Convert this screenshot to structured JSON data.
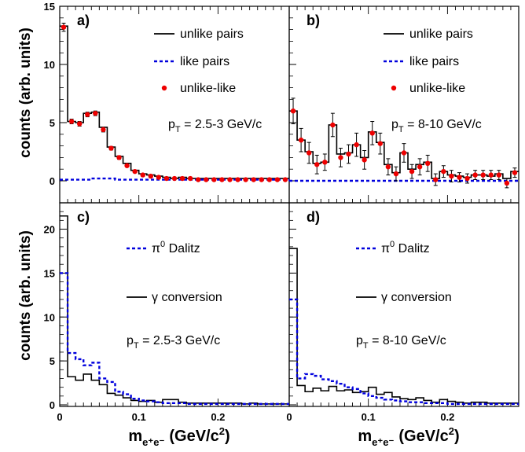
{
  "ylabel": "counts (arb. units)",
  "xlabel_main": "m",
  "xlabel_sub": "e⁺e⁻",
  "xlabel_units": "(GeV/c",
  "xlabel_pow": "2",
  "xlabel_close": ")",
  "colors": {
    "unlike": "#000000",
    "like": "#0000dd",
    "diff": "#ee0000",
    "dalitz": "#0000dd",
    "conv": "#000000"
  },
  "chart_data": [
    {
      "panel": "a",
      "type": "line",
      "label": "a)",
      "pt_pre": "p",
      "pt_sub": "T",
      "pt_val": " = 2.5-3 GeV/c",
      "ylim": [
        0,
        15
      ],
      "yticks": [
        0,
        5,
        10,
        15
      ],
      "xlim": [
        0,
        0.29
      ],
      "legend": {
        "unlike": "unlike pairs",
        "like": "like pairs",
        "diff": "unlike-like"
      },
      "x_edges": [
        0,
        0.01,
        0.02,
        0.03,
        0.04,
        0.05,
        0.06,
        0.07,
        0.08,
        0.09,
        0.1,
        0.11,
        0.12,
        0.13,
        0.14,
        0.15,
        0.16,
        0.17,
        0.18,
        0.19,
        0.2,
        0.21,
        0.22,
        0.23,
        0.24,
        0.25,
        0.26,
        0.27,
        0.28,
        0.29
      ],
      "series": [
        {
          "key": "unlike",
          "values": [
            13.3,
            5.1,
            5.0,
            5.8,
            5.9,
            4.6,
            2.9,
            2.1,
            1.5,
            0.9,
            0.6,
            0.5,
            0.4,
            0.3,
            0.2,
            0.3,
            0.2,
            0.2,
            0.2,
            0.2,
            0.2,
            0.2,
            0.2,
            0.2,
            0.2,
            0.2,
            0.2,
            0.2,
            0.2
          ]
        },
        {
          "key": "like",
          "values": [
            0.1,
            0.1,
            0.1,
            0.1,
            0.2,
            0.2,
            0.2,
            0.1,
            0.1,
            0.1,
            0.1,
            0.1,
            0.1,
            0.1,
            0.1,
            0.1,
            0.1,
            0.1,
            0.1,
            0.1,
            0.1,
            0.1,
            0.1,
            0.1,
            0.1,
            0.1,
            0.1,
            0.1,
            0.1
          ]
        },
        {
          "key": "diff",
          "values": [
            13.2,
            5.1,
            4.9,
            5.7,
            5.8,
            4.4,
            2.8,
            2.0,
            1.3,
            0.8,
            0.5,
            0.4,
            0.3,
            0.2,
            0.2,
            0.2,
            0.2,
            0.1,
            0.1,
            0.1,
            0.1,
            0.1,
            0.1,
            0.1,
            0.1,
            0.1,
            0.1,
            0.1,
            0.1
          ],
          "errors": [
            0.35,
            0.2,
            0.2,
            0.2,
            0.2,
            0.2,
            0.15,
            0.15,
            0.1,
            0.1,
            0.1,
            0.1,
            0.1,
            0.1,
            0.1,
            0.1,
            0.1,
            0.1,
            0.1,
            0.1,
            0.1,
            0.1,
            0.1,
            0.1,
            0.1,
            0.1,
            0.1,
            0.1,
            0.1
          ]
        }
      ]
    },
    {
      "panel": "b",
      "type": "line",
      "label": "b)",
      "pt_pre": "p",
      "pt_sub": "T",
      "pt_val": " = 8-10 GeV/c",
      "ylim": [
        0,
        15
      ],
      "yticks": [
        0,
        5,
        10,
        15
      ],
      "xlim": [
        0,
        0.29
      ],
      "legend": {
        "unlike": "unlike pairs",
        "like": "like pairs",
        "diff": "unlike-like"
      },
      "x_edges": [
        0,
        0.01,
        0.02,
        0.03,
        0.04,
        0.05,
        0.06,
        0.07,
        0.08,
        0.09,
        0.1,
        0.11,
        0.12,
        0.13,
        0.14,
        0.15,
        0.16,
        0.17,
        0.18,
        0.19,
        0.2,
        0.21,
        0.22,
        0.23,
        0.24,
        0.25,
        0.26,
        0.27,
        0.28,
        0.29
      ],
      "series": [
        {
          "key": "unlike",
          "values": [
            6.0,
            3.5,
            2.5,
            1.5,
            1.6,
            4.8,
            2.3,
            2.4,
            3.1,
            2.0,
            4.2,
            3.3,
            1.4,
            0.7,
            2.4,
            1.0,
            1.4,
            1.6,
            0.2,
            0.8,
            0.5,
            0.4,
            0.3,
            0.5,
            0.5,
            0.4,
            0.6,
            0.2,
            0.8
          ]
        },
        {
          "key": "like",
          "values": [
            0,
            0,
            0,
            0,
            0,
            0,
            0,
            0,
            0,
            0,
            0,
            0,
            0,
            0,
            0,
            0,
            0,
            0,
            0,
            0,
            0,
            0,
            0,
            0,
            0,
            0,
            0,
            0,
            0
          ]
        },
        {
          "key": "diff",
          "values": [
            6.0,
            3.5,
            2.4,
            1.4,
            1.6,
            4.8,
            2.0,
            2.3,
            3.1,
            1.8,
            4.1,
            3.2,
            1.2,
            0.6,
            2.4,
            0.8,
            1.2,
            1.5,
            0.1,
            0.8,
            0.4,
            0.3,
            0.2,
            0.5,
            0.5,
            0.5,
            0.5,
            -0.2,
            0.7
          ],
          "errors": [
            1.1,
            1.0,
            0.9,
            0.8,
            0.7,
            1.0,
            0.8,
            0.8,
            1.0,
            0.8,
            1.0,
            0.9,
            0.7,
            0.6,
            0.8,
            0.6,
            0.7,
            0.7,
            0.5,
            0.5,
            0.5,
            0.4,
            0.4,
            0.4,
            0.4,
            0.4,
            0.4,
            0.4,
            0.4
          ]
        }
      ]
    },
    {
      "panel": "c",
      "type": "line",
      "label": "c)",
      "pt_pre": "p",
      "pt_sub": "T",
      "pt_val": " = 2.5-3 GeV/c",
      "ylim": [
        0,
        23
      ],
      "yticks": [
        0,
        5,
        10,
        15,
        20
      ],
      "xlim": [
        0,
        0.29
      ],
      "xticks": [
        0,
        0.1,
        0.2
      ],
      "legend": {
        "dalitz_pre": "π",
        "dalitz_sup": "0",
        "dalitz_post": " Dalitz",
        "conv": "γ conversion"
      },
      "x_edges": [
        0,
        0.01,
        0.02,
        0.03,
        0.04,
        0.05,
        0.06,
        0.07,
        0.08,
        0.09,
        0.1,
        0.11,
        0.12,
        0.13,
        0.14,
        0.15,
        0.16,
        0.17,
        0.18,
        0.19,
        0.2,
        0.21,
        0.22,
        0.23,
        0.24,
        0.25,
        0.26,
        0.27,
        0.28,
        0.29
      ],
      "series": [
        {
          "key": "conv",
          "values": [
            21.5,
            3.2,
            2.8,
            3.5,
            2.8,
            2.3,
            1.3,
            1.1,
            0.8,
            0.5,
            0.4,
            0.5,
            0.3,
            0.6,
            0.6,
            0.3,
            0.2,
            0.2,
            0.2,
            0.2,
            0.2,
            0.2,
            0.2,
            0.1,
            0.2,
            0.1,
            0.1,
            0.1,
            0.1
          ]
        },
        {
          "key": "dalitz",
          "values": [
            15.0,
            5.9,
            5.2,
            4.5,
            4.8,
            3.0,
            2.6,
            1.5,
            1.2,
            0.7,
            0.5,
            0.4,
            0.3,
            0.2,
            0.2,
            0.2,
            0.1,
            0.1,
            0.1,
            0.1,
            0.1,
            0.1,
            0.1,
            0.1,
            0.1,
            0.1,
            0.1,
            0.1,
            0.1
          ]
        }
      ]
    },
    {
      "panel": "d",
      "type": "line",
      "label": "d)",
      "pt_pre": "p",
      "pt_sub": "T",
      "pt_val": " = 8-10 GeV/c",
      "ylim": [
        0,
        23
      ],
      "yticks": [
        0,
        5,
        10,
        15,
        20
      ],
      "xlim": [
        0,
        0.29
      ],
      "xticks": [
        0,
        0.1,
        0.2
      ],
      "legend": {
        "dalitz_pre": "π",
        "dalitz_sup": "0",
        "dalitz_post": " Dalitz",
        "conv": "γ conversion"
      },
      "x_edges": [
        0,
        0.01,
        0.02,
        0.03,
        0.04,
        0.05,
        0.06,
        0.07,
        0.08,
        0.09,
        0.1,
        0.11,
        0.12,
        0.13,
        0.14,
        0.15,
        0.16,
        0.17,
        0.18,
        0.19,
        0.2,
        0.21,
        0.22,
        0.23,
        0.24,
        0.25,
        0.26,
        0.27,
        0.28,
        0.29
      ],
      "series": [
        {
          "key": "conv",
          "values": [
            17.8,
            2.2,
            1.5,
            1.9,
            1.6,
            2.1,
            1.6,
            1.7,
            1.4,
            1.5,
            2.0,
            1.2,
            1.4,
            0.9,
            0.7,
            0.6,
            0.8,
            0.5,
            0.3,
            0.6,
            0.4,
            0.3,
            0.2,
            0.3,
            0.3,
            0.2,
            0.2,
            0.2,
            0.2
          ]
        },
        {
          "key": "dalitz",
          "values": [
            12.0,
            3.0,
            3.5,
            3.3,
            2.9,
            2.7,
            2.4,
            2.0,
            1.8,
            1.3,
            1.0,
            0.8,
            0.6,
            0.5,
            0.4,
            0.3,
            0.3,
            0.2,
            0.2,
            0.2,
            0.1,
            0.1,
            0.1,
            0.1,
            0.1,
            0.1,
            0.1,
            0.1,
            0.1
          ]
        }
      ]
    }
  ]
}
